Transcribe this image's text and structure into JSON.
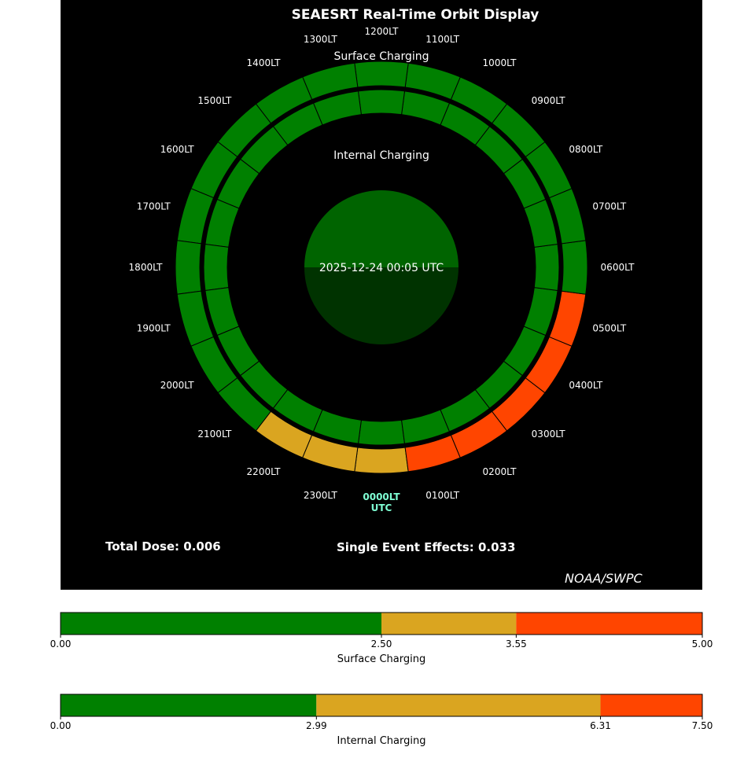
{
  "title": "SEAESRT Real-Time Orbit Display",
  "timestamp": "2025-12-24 00:05 UTC",
  "credit": "NOAA/SWPC",
  "dose": {
    "total_label": "Total Dose: 0.006",
    "see_label": "Single Event Effects: 0.033"
  },
  "colors": {
    "green": "#008000",
    "yellow": "#DAA520",
    "red": "#FF4500",
    "earth_day": "#006400",
    "earth_night": "#003300",
    "current_lt": "#7FFFD4",
    "background": "#000000"
  },
  "chart_data": [
    {
      "type": "polar-ring",
      "surface_label": "Surface Charging",
      "internal_label": "Internal Charging",
      "current_lt_label": "0000LT",
      "current_lt_sub": "UTC",
      "local_times": [
        "0000LT",
        "0100LT",
        "0200LT",
        "0300LT",
        "0400LT",
        "0500LT",
        "0600LT",
        "0700LT",
        "0800LT",
        "0900LT",
        "1000LT",
        "1100LT",
        "1200LT",
        "1300LT",
        "1400LT",
        "1500LT",
        "1600LT",
        "1700LT",
        "1800LT",
        "1900LT",
        "2000LT",
        "2100LT",
        "2200LT",
        "2300LT"
      ],
      "surface_levels": [
        "yellow",
        "red",
        "red",
        "red",
        "red",
        "red",
        "green",
        "green",
        "green",
        "green",
        "green",
        "green",
        "green",
        "green",
        "green",
        "green",
        "green",
        "green",
        "green",
        "green",
        "green",
        "green",
        "yellow",
        "yellow"
      ],
      "internal_levels": [
        "green",
        "green",
        "green",
        "green",
        "green",
        "green",
        "green",
        "green",
        "green",
        "green",
        "green",
        "green",
        "green",
        "green",
        "green",
        "green",
        "green",
        "green",
        "green",
        "green",
        "green",
        "green",
        "green",
        "green"
      ]
    },
    {
      "type": "colorbar",
      "label": "Surface Charging",
      "range": [
        0,
        5.0
      ],
      "thresholds": [
        2.5,
        3.55
      ],
      "tick_labels": [
        "0.00",
        "2.50",
        "3.55",
        "5.00"
      ]
    },
    {
      "type": "colorbar",
      "label": "Internal Charging",
      "range": [
        0,
        7.5
      ],
      "thresholds": [
        2.99,
        6.31
      ],
      "tick_labels": [
        "0.00",
        "2.99",
        "6.31",
        "7.50"
      ]
    }
  ]
}
